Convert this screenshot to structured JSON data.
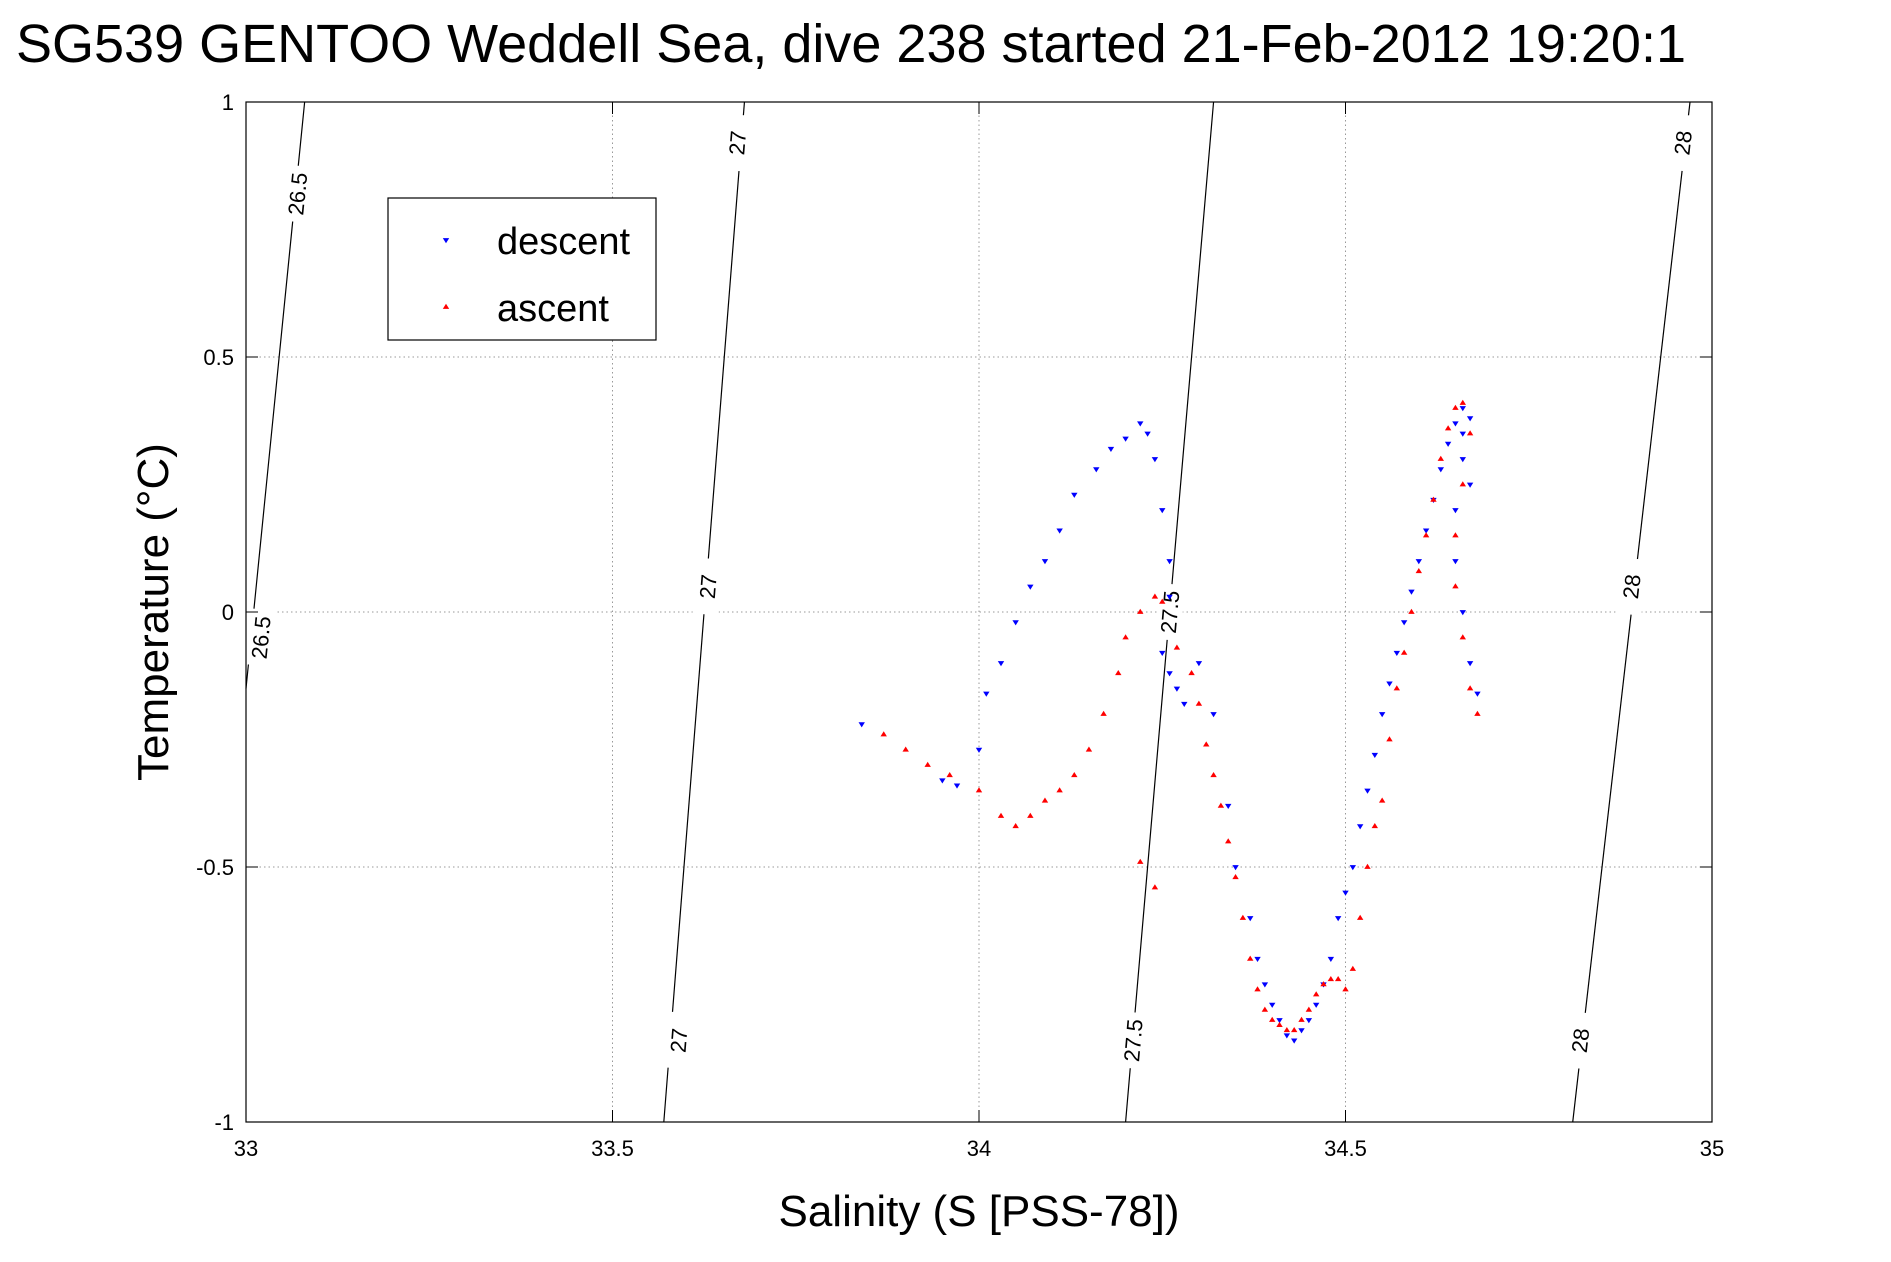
{
  "chart_data": {
    "type": "scatter",
    "title": "SG539 GENTOO Weddell Sea, dive 238 started 21-Feb-2012 19:20:1",
    "xlabel": "Salinity (S [PSS-78])",
    "ylabel": "Temperature (°C)",
    "xlim": [
      33,
      35
    ],
    "ylim": [
      -1,
      1
    ],
    "xticks": [
      "33",
      "33.5",
      "34",
      "34.5",
      "35"
    ],
    "yticks": [
      "-1",
      "-0.5",
      "0",
      "0.5",
      "1"
    ],
    "grid": true,
    "legend": {
      "placement": "top-left",
      "entries": [
        {
          "label": "descent",
          "color": "#0000ff",
          "marker": "triangle-down"
        },
        {
          "label": "ascent",
          "color": "#ff0000",
          "marker": "triangle-up"
        }
      ]
    },
    "isopycnals": [
      {
        "sigma": "26.5",
        "points": [
          [
            33.08,
            1.0
          ],
          [
            33.0,
            -0.15
          ]
        ],
        "labels": [
          [
            33.07,
            0.82
          ],
          [
            33.02,
            -0.05
          ]
        ]
      },
      {
        "sigma": "27",
        "points": [
          [
            33.68,
            1.0
          ],
          [
            33.57,
            -1.0
          ]
        ],
        "labels": [
          [
            33.67,
            0.92
          ],
          [
            33.63,
            0.05
          ],
          [
            33.59,
            -0.84
          ]
        ]
      },
      {
        "sigma": "27.5",
        "points": [
          [
            34.32,
            1.0
          ],
          [
            34.2,
            -1.0
          ]
        ],
        "labels": [
          [
            34.26,
            0.0
          ],
          [
            34.21,
            -0.84
          ]
        ]
      },
      {
        "sigma": "28",
        "points": [
          [
            34.97,
            1.0
          ],
          [
            34.81,
            -1.0
          ]
        ],
        "labels": [
          [
            34.96,
            0.92
          ],
          [
            34.89,
            0.05
          ],
          [
            34.82,
            -0.84
          ]
        ]
      }
    ],
    "series": [
      {
        "name": "descent",
        "color": "#0000ff",
        "marker": "triangle-down",
        "x": [
          33.84,
          33.95,
          33.97,
          34.0,
          34.01,
          34.03,
          34.05,
          34.07,
          34.09,
          34.11,
          34.13,
          34.16,
          34.18,
          34.2,
          34.22,
          34.23,
          34.24,
          34.25,
          34.26,
          34.26,
          34.25,
          34.26,
          34.27,
          34.28,
          34.3,
          34.32,
          34.34,
          34.35,
          34.37,
          34.38,
          34.39,
          34.4,
          34.41,
          34.42,
          34.43,
          34.44,
          34.45,
          34.46,
          34.47,
          34.48,
          34.49,
          34.5,
          34.51,
          34.52,
          34.53,
          34.54,
          34.55,
          34.56,
          34.57,
          34.58,
          34.59,
          34.6,
          34.61,
          34.62,
          34.63,
          34.64,
          34.65,
          34.66,
          34.67,
          34.66,
          34.65,
          34.65,
          34.66,
          34.67,
          34.68,
          34.67,
          34.66
        ],
        "y": [
          -0.22,
          -0.33,
          -0.34,
          -0.27,
          -0.16,
          -0.1,
          -0.02,
          0.05,
          0.1,
          0.16,
          0.23,
          0.28,
          0.32,
          0.34,
          0.37,
          0.35,
          0.3,
          0.2,
          0.1,
          0.03,
          -0.08,
          -0.12,
          -0.15,
          -0.18,
          -0.1,
          -0.2,
          -0.38,
          -0.5,
          -0.6,
          -0.68,
          -0.73,
          -0.77,
          -0.8,
          -0.83,
          -0.84,
          -0.82,
          -0.8,
          -0.77,
          -0.73,
          -0.68,
          -0.6,
          -0.55,
          -0.5,
          -0.42,
          -0.35,
          -0.28,
          -0.2,
          -0.14,
          -0.08,
          -0.02,
          0.04,
          0.1,
          0.16,
          0.22,
          0.28,
          0.33,
          0.37,
          0.4,
          0.38,
          0.3,
          0.2,
          0.1,
          0.0,
          -0.1,
          -0.16,
          0.25,
          0.35
        ]
      },
      {
        "name": "ascent",
        "color": "#ff0000",
        "marker": "triangle-up",
        "x": [
          33.87,
          33.9,
          33.93,
          33.96,
          34.0,
          34.03,
          34.05,
          34.07,
          34.09,
          34.11,
          34.13,
          34.15,
          34.17,
          34.19,
          34.2,
          34.22,
          34.24,
          34.25,
          34.27,
          34.29,
          34.3,
          34.31,
          34.32,
          34.33,
          34.34,
          34.35,
          34.36,
          34.37,
          34.38,
          34.39,
          34.4,
          34.41,
          34.42,
          34.43,
          34.44,
          34.45,
          34.46,
          34.47,
          34.48,
          34.49,
          34.5,
          34.51,
          34.52,
          34.53,
          34.54,
          34.55,
          34.56,
          34.57,
          34.58,
          34.59,
          34.6,
          34.61,
          34.62,
          34.63,
          34.64,
          34.65,
          34.66,
          34.67,
          34.66,
          34.65,
          34.65,
          34.66,
          34.67,
          34.68,
          34.22,
          34.24
        ],
        "y": [
          -0.24,
          -0.27,
          -0.3,
          -0.32,
          -0.35,
          -0.4,
          -0.42,
          -0.4,
          -0.37,
          -0.35,
          -0.32,
          -0.27,
          -0.2,
          -0.12,
          -0.05,
          0.0,
          0.03,
          0.02,
          -0.07,
          -0.12,
          -0.18,
          -0.26,
          -0.32,
          -0.38,
          -0.45,
          -0.52,
          -0.6,
          -0.68,
          -0.74,
          -0.78,
          -0.8,
          -0.81,
          -0.82,
          -0.82,
          -0.8,
          -0.78,
          -0.75,
          -0.73,
          -0.72,
          -0.72,
          -0.74,
          -0.7,
          -0.6,
          -0.5,
          -0.42,
          -0.37,
          -0.25,
          -0.15,
          -0.08,
          0.0,
          0.08,
          0.15,
          0.22,
          0.3,
          0.36,
          0.4,
          0.41,
          0.35,
          0.25,
          0.15,
          0.05,
          -0.05,
          -0.15,
          -0.2,
          -0.49,
          -0.54
        ]
      }
    ]
  }
}
